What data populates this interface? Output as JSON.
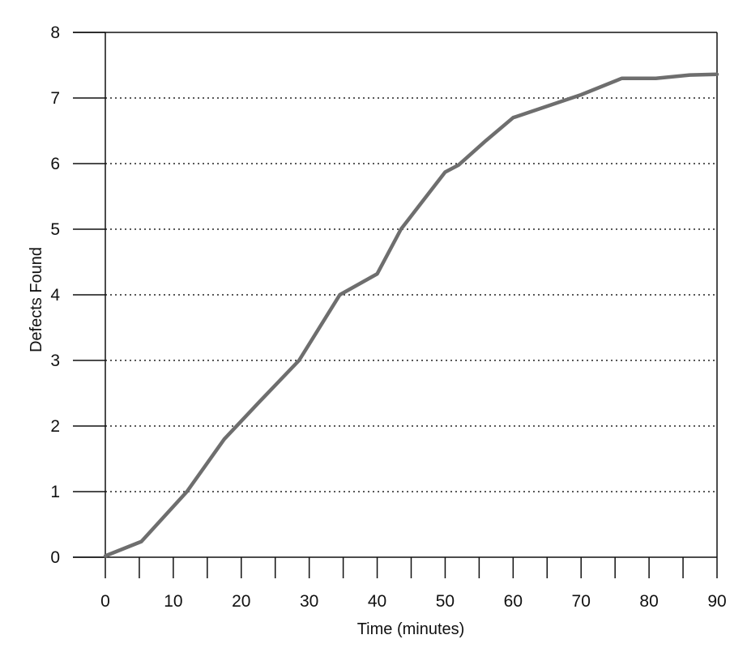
{
  "chart_data": {
    "type": "line",
    "title": "",
    "xlabel": "Time (minutes)",
    "ylabel": "Defects Found",
    "xlim": [
      0,
      90
    ],
    "ylim": [
      0,
      8
    ],
    "x_ticks": [
      0,
      10,
      20,
      30,
      40,
      50,
      60,
      70,
      80,
      90
    ],
    "y_ticks": [
      0,
      1,
      2,
      3,
      4,
      5,
      6,
      7,
      8
    ],
    "x_tick_labels": [
      "0",
      "10",
      "20",
      "30",
      "40",
      "50",
      "60",
      "70",
      "80",
      "90"
    ],
    "y_tick_labels": [
      "0",
      "1",
      "2",
      "3",
      "4",
      "5",
      "6",
      "7",
      "8"
    ],
    "x_minor_ticks_every": 5,
    "grid": "horizontal dotted",
    "legend": "none",
    "line_color": "#6e6e6e",
    "series": [
      {
        "points": [
          [
            0,
            0.02
          ],
          [
            5.3,
            0.24
          ],
          [
            12,
            1.0
          ],
          [
            17.5,
            1.8
          ],
          [
            22.5,
            2.35
          ],
          [
            28.5,
            3.0
          ],
          [
            34.5,
            4.0
          ],
          [
            40,
            4.32
          ],
          [
            43.5,
            5.0
          ],
          [
            50,
            5.87
          ],
          [
            52,
            5.98
          ],
          [
            56,
            6.35
          ],
          [
            60,
            6.7
          ],
          [
            70,
            7.05
          ],
          [
            76,
            7.3
          ],
          [
            81,
            7.3
          ],
          [
            86,
            7.35
          ],
          [
            90,
            7.36
          ]
        ]
      }
    ]
  }
}
